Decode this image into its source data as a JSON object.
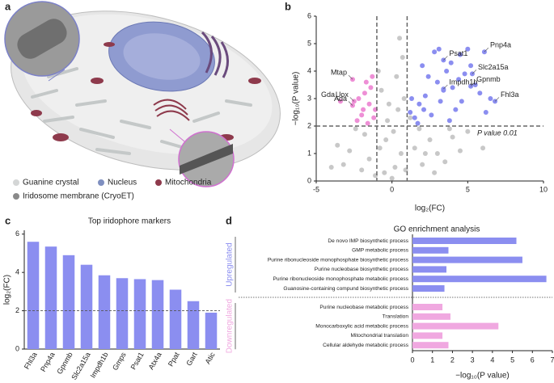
{
  "panel_labels": [
    "a",
    "b",
    "c",
    "d"
  ],
  "illustration": {
    "legend": [
      {
        "text": "Guanine crystal",
        "color": "#d4d6d6"
      },
      {
        "text": "Nucleus",
        "color": "#7f8fc0"
      },
      {
        "text": "Mitochondria",
        "color": "#8e3a4c"
      },
      {
        "text": "Iridosome membrane (CryoET)",
        "color": "#8a8a8a"
      }
    ]
  },
  "chart_data": [
    {
      "type": "scatter",
      "x_label": "log₂(FC)",
      "y_label": "−log₁₀(P value)",
      "xlim": [
        -5,
        10
      ],
      "xticks": [
        -5,
        0,
        5,
        10
      ],
      "ylim": [
        0,
        6
      ],
      "yticks": [
        0,
        1,
        2,
        3,
        4,
        5,
        6
      ],
      "vlines": [
        -1,
        1
      ],
      "hline": 2,
      "hline_label": "P value 0.01",
      "series": [
        {
          "color": "#c8c8c8",
          "x": [
            -0.5,
            0.2,
            0.6,
            -0.8,
            0.1,
            -0.3,
            0.4,
            -1.5,
            1.5,
            2.0,
            -2.0,
            2.5,
            3.0,
            -2.8,
            3.5,
            0.8,
            -0.7,
            0.3,
            0.5,
            -0.9,
            4.0,
            -3.2,
            1.8,
            -1.8,
            0.0,
            0.9,
            -1.1,
            2.8,
            4.5,
            -4.0,
            1.2,
            -0.2,
            5.0,
            0.7,
            -0.4,
            2.2,
            -2.4,
            6.0,
            3.8,
            -3.6
          ],
          "values": [
            0.3,
            0.5,
            1.0,
            1.2,
            1.8,
            2.2,
            2.6,
            0.8,
            1.2,
            0.6,
            0.4,
            1.5,
            1.0,
            1.1,
            0.7,
            3.0,
            3.3,
            3.8,
            5.2,
            4.0,
            1.6,
            0.6,
            1.9,
            1.7,
            0.1,
            0.4,
            0.2,
            0.3,
            1.1,
            0.5,
            2.3,
            2.8,
            1.8,
            4.5,
            1.5,
            1.0,
            1.9,
            1.2,
            1.9,
            1.3
          ]
        },
        {
          "color": "#8b8ef0",
          "x": [
            1.5,
            1.8,
            2.2,
            2.6,
            3.0,
            3.2,
            3.6,
            4.0,
            4.2,
            4.5,
            4.8,
            5.0,
            5.5,
            2.0,
            2.8,
            1.3,
            3.8,
            4.6,
            5.8,
            6.2,
            2.4,
            3.4,
            1.7,
            5.2,
            4.4,
            3.9,
            2.1,
            6.5,
            1.2,
            3.1
          ],
          "values": [
            2.3,
            2.8,
            3.1,
            2.4,
            3.6,
            2.9,
            4.0,
            3.4,
            2.6,
            4.6,
            3.9,
            4.8,
            3.5,
            4.2,
            4.7,
            3.0,
            2.2,
            2.9,
            3.2,
            2.5,
            3.8,
            3.3,
            2.1,
            4.2,
            3.7,
            4.3,
            2.6,
            3.0,
            2.5,
            4.8
          ]
        },
        {
          "color": "#ee8fd6",
          "x": [
            -1.2,
            -1.5,
            -1.8,
            -1.3,
            -2.0,
            -1.6,
            -2.2,
            -1.1,
            -1.4,
            -1.9,
            -2.3,
            -1.7
          ],
          "values": [
            2.3,
            2.8,
            3.2,
            3.8,
            2.4,
            2.1,
            3.0,
            2.6,
            3.4,
            2.6,
            2.2,
            3.6
          ]
        },
        {
          "color": "#8b8ef0",
          "x": [
            6.1,
            3.4,
            5.3,
            5.2,
            3.4,
            6.8
          ],
          "values": [
            4.7,
            4.4,
            3.9,
            3.45,
            3.35,
            2.9
          ],
          "labels": [
            "Pnp4a",
            "Psat1",
            "Slc2a15a",
            "Gpnmb",
            "Impdh1b",
            "Fhl3a"
          ]
        },
        {
          "color": "#ee8fd6",
          "x": [
            -2.6,
            -2.5,
            -3.4,
            -2.6
          ],
          "values": [
            3.7,
            2.9,
            2.9,
            2.75
          ],
          "labels": [
            "Mtap",
            "Uox",
            "Gda",
            "Ada"
          ]
        }
      ]
    },
    {
      "type": "bar",
      "title": "Top iridophore markers",
      "y_label": "log₂(FC)",
      "color": "#8b8ef0",
      "categories": [
        "Fhl3a",
        "Pnp4a",
        "Gpnmb",
        "Slc2a15a",
        "Impdh1b",
        "Gmps",
        "Psat1",
        "Atx4a",
        "Ppat",
        "Gart",
        "Atic"
      ],
      "values": [
        5.6,
        5.35,
        4.9,
        4.4,
        3.85,
        3.7,
        3.65,
        3.6,
        3.1,
        2.5,
        1.9
      ],
      "ylim": [
        0,
        6.2
      ],
      "yticks": [
        0,
        2,
        4,
        6
      ],
      "hline": 2
    },
    {
      "type": "hbar",
      "title": "GO enrichment analysis",
      "x_label": "−log₁₀(P value)",
      "xlim": [
        0,
        7
      ],
      "xticks": [
        0,
        1,
        2,
        3,
        4,
        5,
        6,
        7
      ],
      "groups": [
        {
          "name": "Upregulated",
          "color": "#8b8ef0",
          "categories": [
            "De novo IMP biosynthetic process",
            "GMP metabolic process",
            "Purine ribonucleoside monophosphate biosynthetic process",
            "Purine nucleobase biosynthetic process",
            "Purine ribonucleoside monophosphate metabolic process",
            "Guanosine-containing compund biosynthetic process"
          ],
          "values": [
            5.2,
            1.8,
            5.5,
            1.7,
            6.7,
            1.6
          ]
        },
        {
          "name": "Downregulated",
          "color": "#f0a8e0",
          "categories": [
            "Purine nucleobase metabolic process",
            "Translation",
            "Monocarboxylic acid metabolic process",
            "Mitochondrial translation",
            "Cellular aldehyde metabolic process"
          ],
          "values": [
            1.5,
            1.9,
            4.3,
            1.5,
            1.8
          ]
        }
      ]
    }
  ]
}
